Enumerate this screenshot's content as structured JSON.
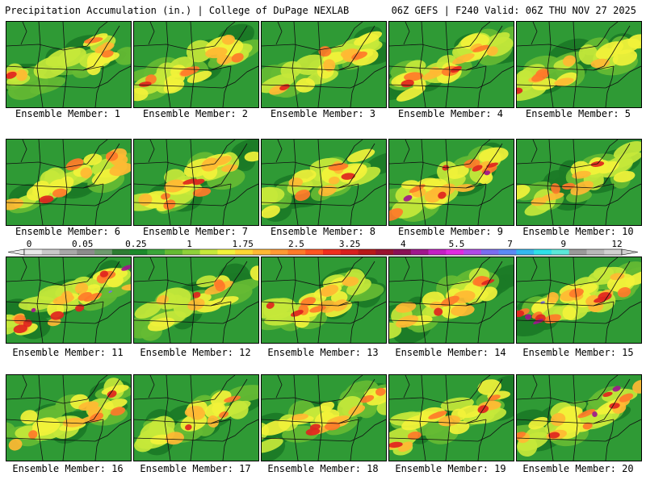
{
  "header": {
    "left": "Precipitation Accumulation (in.) | College of DuPage NEXLAB",
    "right": "06Z GEFS | F240 Valid: 06Z THU NOV 27 2025"
  },
  "colorbar": {
    "labels": [
      "0",
      "0.05",
      "0.25",
      "1",
      "1.75",
      "2.5",
      "3.25",
      "4",
      "5.5",
      "7",
      "9",
      "12"
    ],
    "colors": [
      "#e8e8e8",
      "#c8c8c8",
      "#a8a8a8",
      "#8c8c8c",
      "#6e9a6e",
      "#2e7d32",
      "#1b8a2b",
      "#3aa53a",
      "#66bb33",
      "#8fd13a",
      "#c6e83a",
      "#f2f23a",
      "#ffd633",
      "#ffb833",
      "#ff9933",
      "#ff7a29",
      "#ff5522",
      "#f02e1e",
      "#d81e1e",
      "#b81818",
      "#9a1230",
      "#8a0f55",
      "#a0168c",
      "#c41fc4",
      "#e02be0",
      "#b04ae8",
      "#7a6cf0",
      "#5a8af5",
      "#33b8f0",
      "#2ee0e8",
      "#5ae8d8",
      "#9a9a9a",
      "#b8b8b8",
      "#d0d0d0"
    ]
  },
  "members": [
    {
      "label": "Ensemble Member: 1",
      "intensity": 0.45
    },
    {
      "label": "Ensemble Member: 2",
      "intensity": 0.5
    },
    {
      "label": "Ensemble Member: 3",
      "intensity": 0.4
    },
    {
      "label": "Ensemble Member: 4",
      "intensity": 0.65
    },
    {
      "label": "Ensemble Member: 5",
      "intensity": 0.35
    },
    {
      "label": "Ensemble Member: 6",
      "intensity": 0.5
    },
    {
      "label": "Ensemble Member: 7",
      "intensity": 0.6
    },
    {
      "label": "Ensemble Member: 8",
      "intensity": 0.45
    },
    {
      "label": "Ensemble Member: 9",
      "intensity": 0.85
    },
    {
      "label": "Ensemble Member: 10",
      "intensity": 0.45
    },
    {
      "label": "Ensemble Member: 11",
      "intensity": 0.95
    },
    {
      "label": "Ensemble Member: 12",
      "intensity": 0.35
    },
    {
      "label": "Ensemble Member: 13",
      "intensity": 0.55
    },
    {
      "label": "Ensemble Member: 14",
      "intensity": 0.6
    },
    {
      "label": "Ensemble Member: 15",
      "intensity": 0.9
    },
    {
      "label": "Ensemble Member: 16",
      "intensity": 0.5
    },
    {
      "label": "Ensemble Member: 17",
      "intensity": 0.4
    },
    {
      "label": "Ensemble Member: 18",
      "intensity": 0.55
    },
    {
      "label": "Ensemble Member: 19",
      "intensity": 0.55
    },
    {
      "label": "Ensemble Member: 20",
      "intensity": 0.8
    }
  ]
}
